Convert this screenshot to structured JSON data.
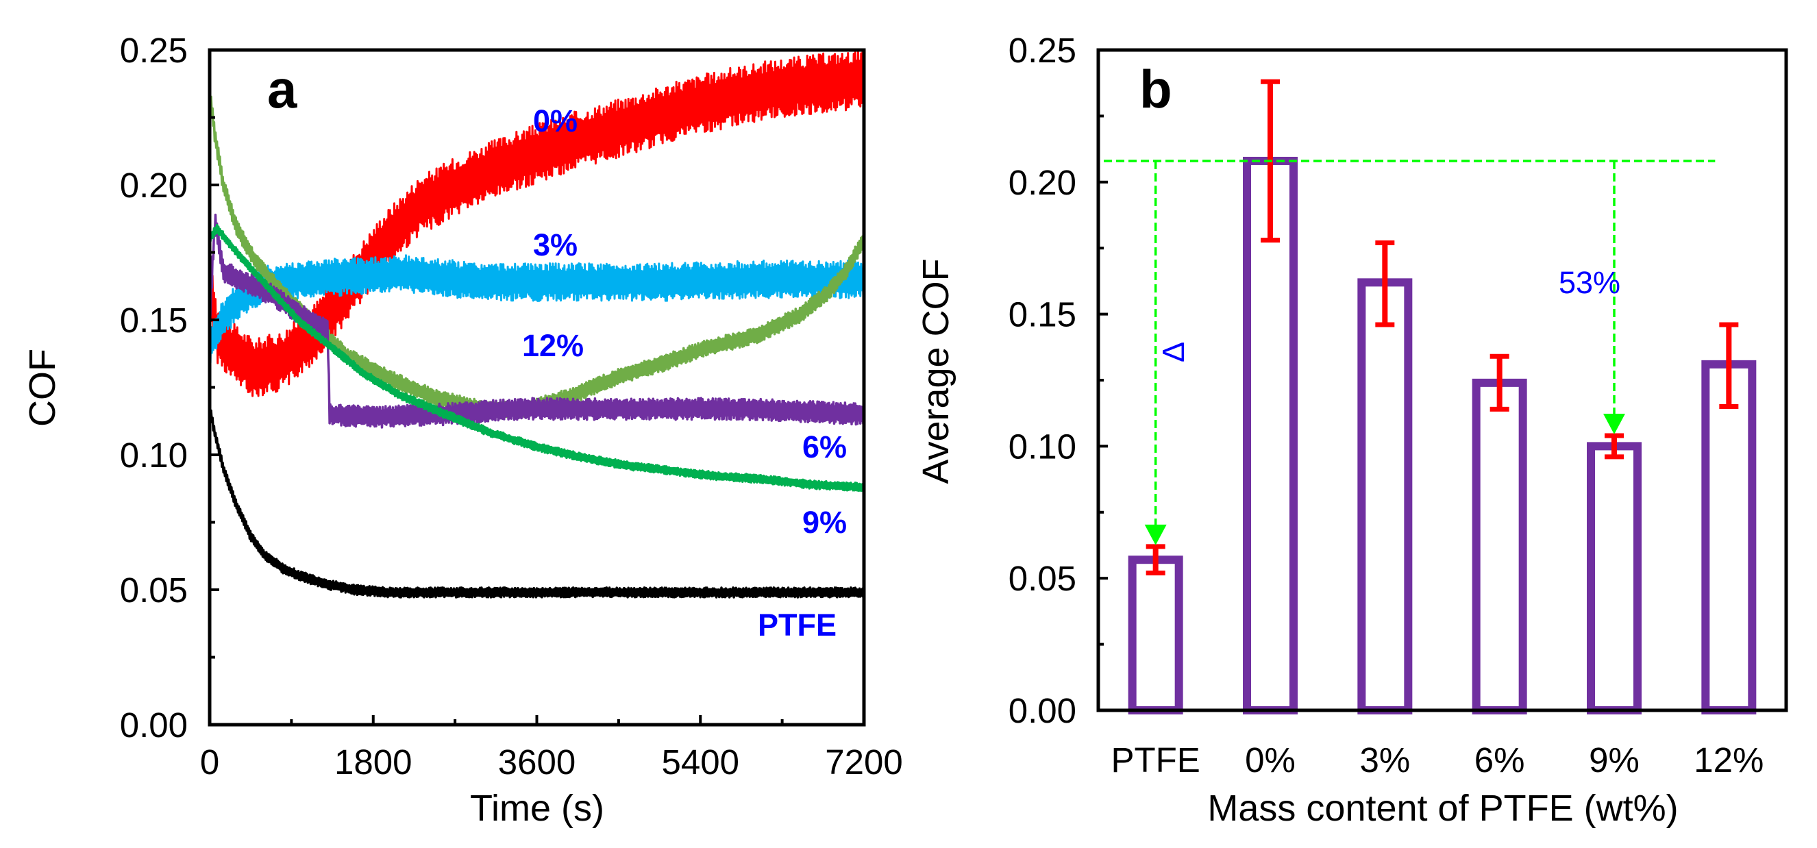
{
  "figure": {
    "width_label": "",
    "colors": {
      "axis": "#000000",
      "label_blue": "#0000ff",
      "bar": "#7030a0",
      "error": "#ff0000",
      "guide": "#00ff00"
    }
  },
  "chart_data": [
    {
      "id": "a",
      "type": "line",
      "panel_label": "a",
      "xlabel": "Time (s)",
      "ylabel": "COF",
      "xlim": [
        0,
        7200
      ],
      "ylim": [
        0,
        0.25
      ],
      "xticks": [
        0,
        1800,
        3600,
        5400,
        7200
      ],
      "xtick_labels": [
        "0",
        "1800",
        "3600",
        "5400",
        "7200"
      ],
      "yticks": [
        0,
        0.05,
        0.1,
        0.15,
        0.2,
        0.25
      ],
      "ytick_labels": [
        "0.00",
        "0.05",
        "0.10",
        "0.15",
        "0.20",
        "0.25"
      ],
      "series": [
        {
          "name": "0%",
          "label": "0%",
          "color": "#ff0000",
          "band": 0.011,
          "points": [
            [
              0,
              0.163
            ],
            [
              80,
              0.145
            ],
            [
              250,
              0.138
            ],
            [
              500,
              0.132
            ],
            [
              800,
              0.135
            ],
            [
              1100,
              0.143
            ],
            [
              1500,
              0.16
            ],
            [
              1900,
              0.178
            ],
            [
              2300,
              0.192
            ],
            [
              2800,
              0.201
            ],
            [
              3300,
              0.208
            ],
            [
              3800,
              0.214
            ],
            [
              4300,
              0.219
            ],
            [
              4800,
              0.224
            ],
            [
              5300,
              0.229
            ],
            [
              5800,
              0.233
            ],
            [
              6300,
              0.236
            ],
            [
              6800,
              0.238
            ],
            [
              7200,
              0.239
            ]
          ]
        },
        {
          "name": "3%",
          "label": "3%",
          "color": "#00b0f0",
          "band": 0.007,
          "points": [
            [
              0,
              0.14
            ],
            [
              120,
              0.149
            ],
            [
              300,
              0.157
            ],
            [
              600,
              0.163
            ],
            [
              1000,
              0.165
            ],
            [
              1500,
              0.166
            ],
            [
              2200,
              0.167
            ],
            [
              3000,
              0.164
            ],
            [
              4000,
              0.164
            ],
            [
              5000,
              0.164
            ],
            [
              6000,
              0.165
            ],
            [
              7200,
              0.165
            ]
          ]
        },
        {
          "name": "12%",
          "label": "12%",
          "color": "#70ad47",
          "band": 0.003,
          "points": [
            [
              0,
              0.235
            ],
            [
              60,
              0.218
            ],
            [
              150,
              0.2
            ],
            [
              300,
              0.184
            ],
            [
              500,
              0.172
            ],
            [
              800,
              0.16
            ],
            [
              1100,
              0.15
            ],
            [
              1500,
              0.137
            ],
            [
              2000,
              0.128
            ],
            [
              2500,
              0.121
            ],
            [
              3000,
              0.117
            ],
            [
              3500,
              0.117
            ],
            [
              4000,
              0.122
            ],
            [
              4500,
              0.129
            ],
            [
              5000,
              0.134
            ],
            [
              5500,
              0.14
            ],
            [
              6000,
              0.144
            ],
            [
              6500,
              0.152
            ],
            [
              6800,
              0.16
            ],
            [
              7000,
              0.168
            ],
            [
              7200,
              0.18
            ]
          ]
        },
        {
          "name": "6%",
          "label": "6%",
          "color": "#7030a0",
          "band": 0.004,
          "points": [
            [
              0,
              0.15
            ],
            [
              60,
              0.187
            ],
            [
              150,
              0.168
            ],
            [
              400,
              0.164
            ],
            [
              700,
              0.159
            ],
            [
              1000,
              0.152
            ],
            [
              1300,
              0.146
            ],
            [
              1320,
              0.115
            ],
            [
              1800,
              0.114
            ],
            [
              2600,
              0.115
            ],
            [
              3400,
              0.117
            ],
            [
              4200,
              0.117
            ],
            [
              5000,
              0.117
            ],
            [
              5800,
              0.117
            ],
            [
              6600,
              0.116
            ],
            [
              7200,
              0.115
            ]
          ]
        },
        {
          "name": "9%",
          "label": "9%",
          "color": "#00b050",
          "band": 0.0015,
          "points": [
            [
              0,
              0.18
            ],
            [
              80,
              0.184
            ],
            [
              200,
              0.179
            ],
            [
              400,
              0.171
            ],
            [
              700,
              0.16
            ],
            [
              1000,
              0.149
            ],
            [
              1300,
              0.141
            ],
            [
              1700,
              0.13
            ],
            [
              2100,
              0.122
            ],
            [
              2600,
              0.115
            ],
            [
              3100,
              0.108
            ],
            [
              3600,
              0.103
            ],
            [
              4100,
              0.099
            ],
            [
              4600,
              0.096
            ],
            [
              5100,
              0.094
            ],
            [
              5600,
              0.092
            ],
            [
              6100,
              0.091
            ],
            [
              6600,
              0.089
            ],
            [
              7200,
              0.088
            ]
          ]
        },
        {
          "name": "PTFE",
          "label": "PTFE",
          "color": "#000000",
          "band": 0.0018,
          "points": [
            [
              0,
              0.118
            ],
            [
              50,
              0.109
            ],
            [
              150,
              0.095
            ],
            [
              300,
              0.081
            ],
            [
              450,
              0.07
            ],
            [
              600,
              0.063
            ],
            [
              800,
              0.058
            ],
            [
              1000,
              0.055
            ],
            [
              1300,
              0.052
            ],
            [
              1600,
              0.05
            ],
            [
              2000,
              0.049
            ],
            [
              3000,
              0.049
            ],
            [
              4000,
              0.049
            ],
            [
              5000,
              0.049
            ],
            [
              6000,
              0.049
            ],
            [
              7200,
              0.049
            ]
          ]
        }
      ]
    },
    {
      "id": "b",
      "type": "bar",
      "panel_label": "b",
      "xlabel": "Mass content of PTFE  (wt%)",
      "ylabel": "Average COF",
      "ylim": [
        0,
        0.25
      ],
      "yticks": [
        0,
        0.05,
        0.1,
        0.15,
        0.2,
        0.25
      ],
      "ytick_labels": [
        "0.00",
        "0.05",
        "0.10",
        "0.15",
        "0.20",
        "0.25"
      ],
      "categories": [
        "PTFE",
        "0%",
        "3%",
        "6%",
        "9%",
        "12%"
      ],
      "values": [
        0.057,
        0.208,
        0.162,
        0.124,
        0.1,
        0.131
      ],
      "errors": [
        [
          0.052,
          0.062
        ],
        [
          0.178,
          0.238
        ],
        [
          0.146,
          0.177
        ],
        [
          0.114,
          0.134
        ],
        [
          0.096,
          0.104
        ],
        [
          0.115,
          0.146
        ]
      ],
      "reference_value": 0.208,
      "annotation_percent": "53%",
      "annotation_symbol": "∆"
    }
  ]
}
